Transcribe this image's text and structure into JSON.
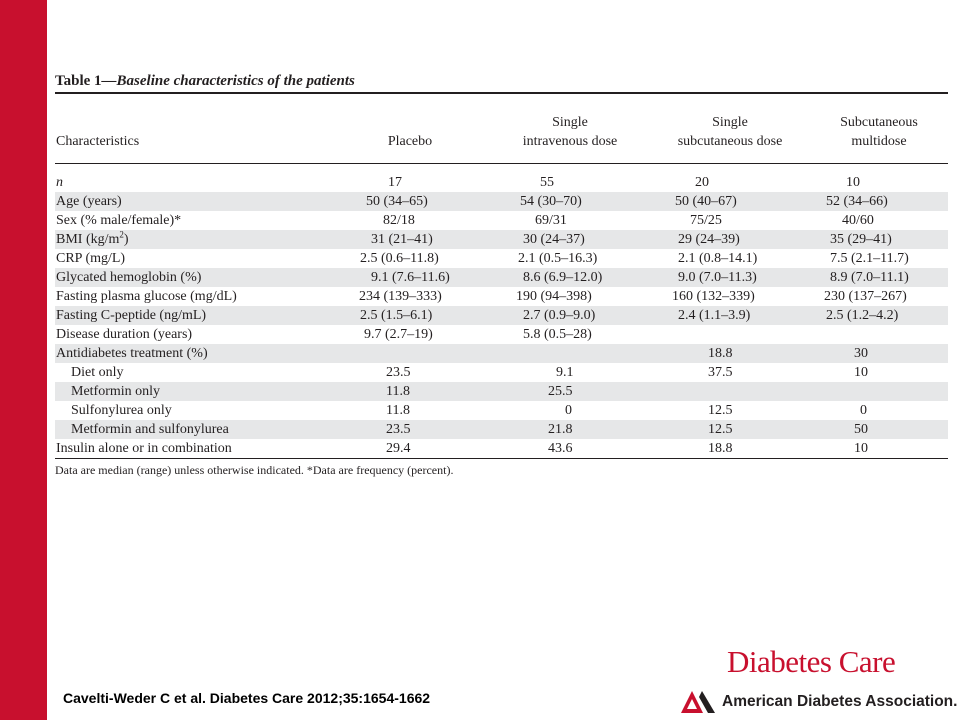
{
  "table": {
    "title_prefix": "Table 1",
    "title_rest": "—Baseline characteristics of the patients",
    "headers": {
      "characteristics": "Characteristics",
      "col1": [
        "",
        "Placebo"
      ],
      "col2": [
        "Single",
        "intravenous dose"
      ],
      "col3": [
        "Single",
        "subcutaneous dose"
      ],
      "col4": [
        "Subcutaneous",
        "multidose"
      ]
    },
    "rows": [
      {
        "label": "n",
        "v": [
          "17",
          "55",
          "20",
          "10"
        ]
      },
      {
        "label": "Age (years)",
        "v": [
          "50 (34–65)",
          "54 (30–70)",
          "50 (40–67)",
          "52 (34–66)"
        ]
      },
      {
        "label": "Sex (% male/female)*",
        "v": [
          "82/18",
          "69/31",
          "75/25",
          "40/60"
        ]
      },
      {
        "label": "BMI (kg/m",
        "label_sup": "2",
        "label_after": ")",
        "v": [
          "31 (21–41)",
          "30 (24–37)",
          "29 (24–39)",
          "35 (29–41)"
        ]
      },
      {
        "label": "CRP (mg/L)",
        "v": [
          "2.5 (0.6–11.8)",
          "2.1 (0.5–16.3)",
          "2.1 (0.8–14.1)",
          "7.5 (2.1–11.7)"
        ]
      },
      {
        "label": "Glycated hemoglobin (%)",
        "v": [
          "9.1 (7.6–11.6)",
          "8.6 (6.9–12.0)",
          "9.0 (7.0–11.3)",
          "8.9 (7.0–11.1)"
        ]
      },
      {
        "label": "Fasting plasma glucose (mg/dL)",
        "v": [
          "234 (139–333)",
          "190 (94–398)",
          "160 (132–339)",
          "230 (137–267)"
        ]
      },
      {
        "label": "Fasting C-peptide (ng/mL)",
        "v": [
          "2.5 (1.5–6.1)",
          "2.7 (0.9–9.0)",
          "2.4 (1.1–3.9)",
          "2.5 (1.2–4.2)"
        ]
      },
      {
        "label": "Disease duration (years)",
        "v": [
          "9.7 (2.7–19)",
          "5.8 (0.5–28)",
          "",
          ""
        ]
      },
      {
        "label": "Antidiabetes treatment (%)",
        "v": [
          "",
          "",
          "18.8",
          "30"
        ]
      },
      {
        "label": "Diet only",
        "v": [
          "23.5",
          "9.1",
          "37.5",
          "10"
        ]
      },
      {
        "label": "Metformin only",
        "v": [
          "11.8",
          "25.5",
          "",
          ""
        ]
      },
      {
        "label": "Sulfonylurea only",
        "v": [
          "11.8",
          "0",
          "12.5",
          "0"
        ]
      },
      {
        "label": "Metformin and sulfonylurea",
        "v": [
          "23.5",
          "21.8",
          "12.5",
          "50"
        ]
      },
      {
        "label": "Insulin alone or in combination",
        "v": [
          "29.4",
          "43.6",
          "18.8",
          "10"
        ]
      }
    ],
    "footnote": "Data are median (range) unless otherwise indicated. *Data are frequency (percent)."
  },
  "citation": "Cavelti-Weder C et al. Diabetes Care 2012;35:1654-1662",
  "logos": {
    "journal": "Diabetes Care",
    "association": "American Diabetes Association."
  },
  "colors": {
    "accent_red": "#c8102e",
    "row_shade": "#e6e7e8",
    "text": "#231f20"
  }
}
